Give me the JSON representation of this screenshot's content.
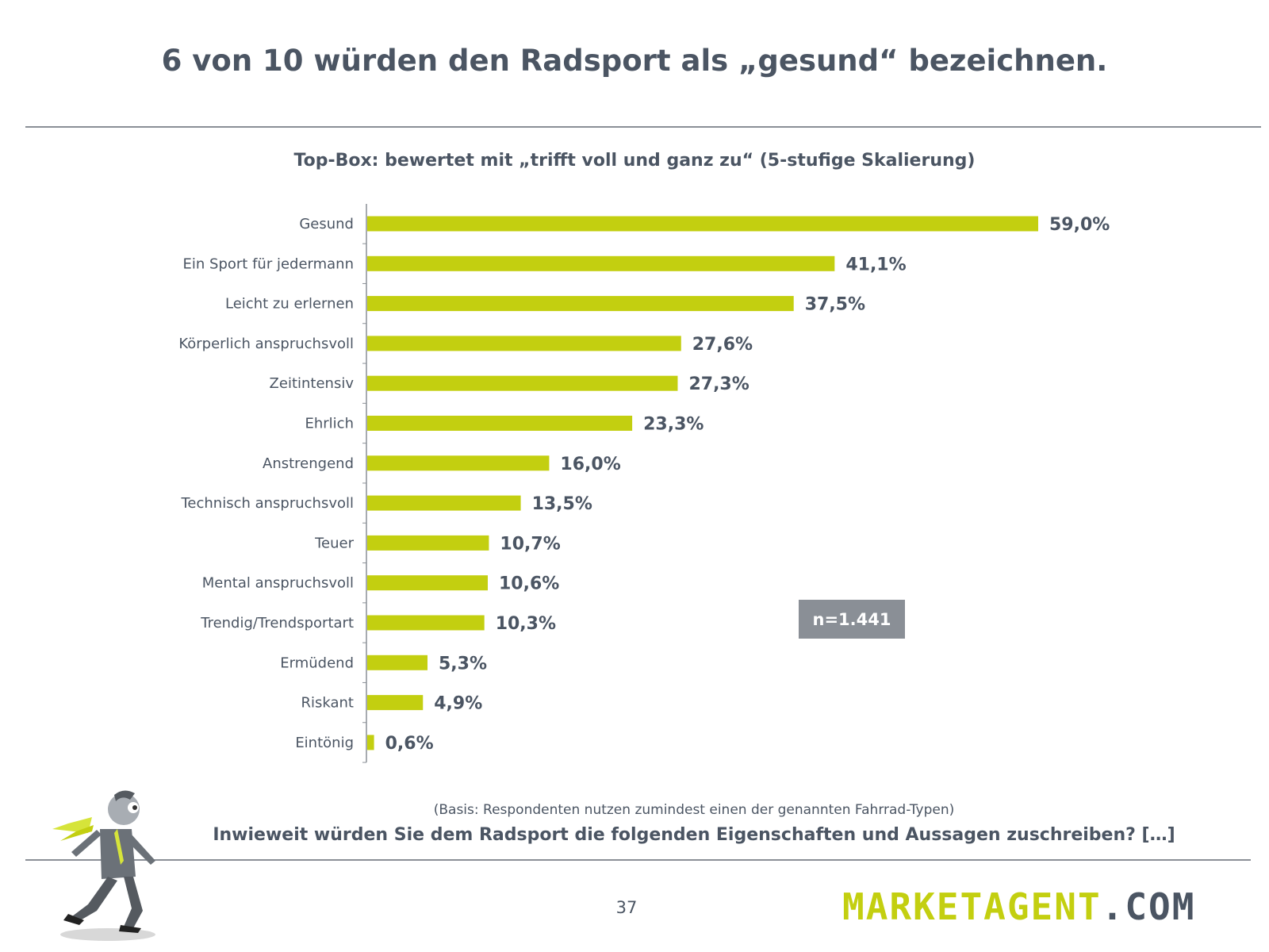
{
  "header": {
    "title": "6 von 10 würden den Radsport als „gesund“ bezeichnen."
  },
  "chart_data": {
    "type": "bar",
    "orientation": "horizontal",
    "title": "Top-Box: bewertet mit „trifft voll und ganz zu“ (5-stufige Skalierung)",
    "categories": [
      "Gesund",
      "Ein Sport für jedermann",
      "Leicht zu erlernen",
      "Körperlich anspruchsvoll",
      "Zeitintensiv",
      "Ehrlich",
      "Anstrengend",
      "Technisch anspruchsvoll",
      "Teuer",
      "Mental anspruchsvoll",
      "Trendig/Trendsportart",
      "Ermüdend",
      "Riskant",
      "Eintönig"
    ],
    "values": [
      59.0,
      41.1,
      37.5,
      27.6,
      27.3,
      23.3,
      16.0,
      13.5,
      10.7,
      10.6,
      10.3,
      5.3,
      4.9,
      0.6
    ],
    "value_labels": [
      "59,0%",
      "41,1%",
      "37,5%",
      "27,6%",
      "27,3%",
      "23,3%",
      "16,0%",
      "13,5%",
      "10,7%",
      "10,6%",
      "10,3%",
      "5,3%",
      "4,9%",
      "0,6%"
    ],
    "xlim": [
      0,
      59
    ],
    "bar_color": "#c3cf10",
    "grid": false,
    "legend": "none"
  },
  "sample_size": "n=1.441",
  "footer": {
    "basis": "(Basis: Respondenten nutzen zumindest einen der genannten Fahrrad-Typen)",
    "question": "Inwieweit würden Sie dem Radsport die folgenden Eigenschaften und Aussagen zuschreiben? […]",
    "page_number": "37",
    "logo_part1": "MARKETAGENT",
    "logo_part2": ".COM"
  },
  "colors": {
    "text": "#4b5563",
    "accent": "#c3cf10",
    "badge": "#8a8f96"
  }
}
